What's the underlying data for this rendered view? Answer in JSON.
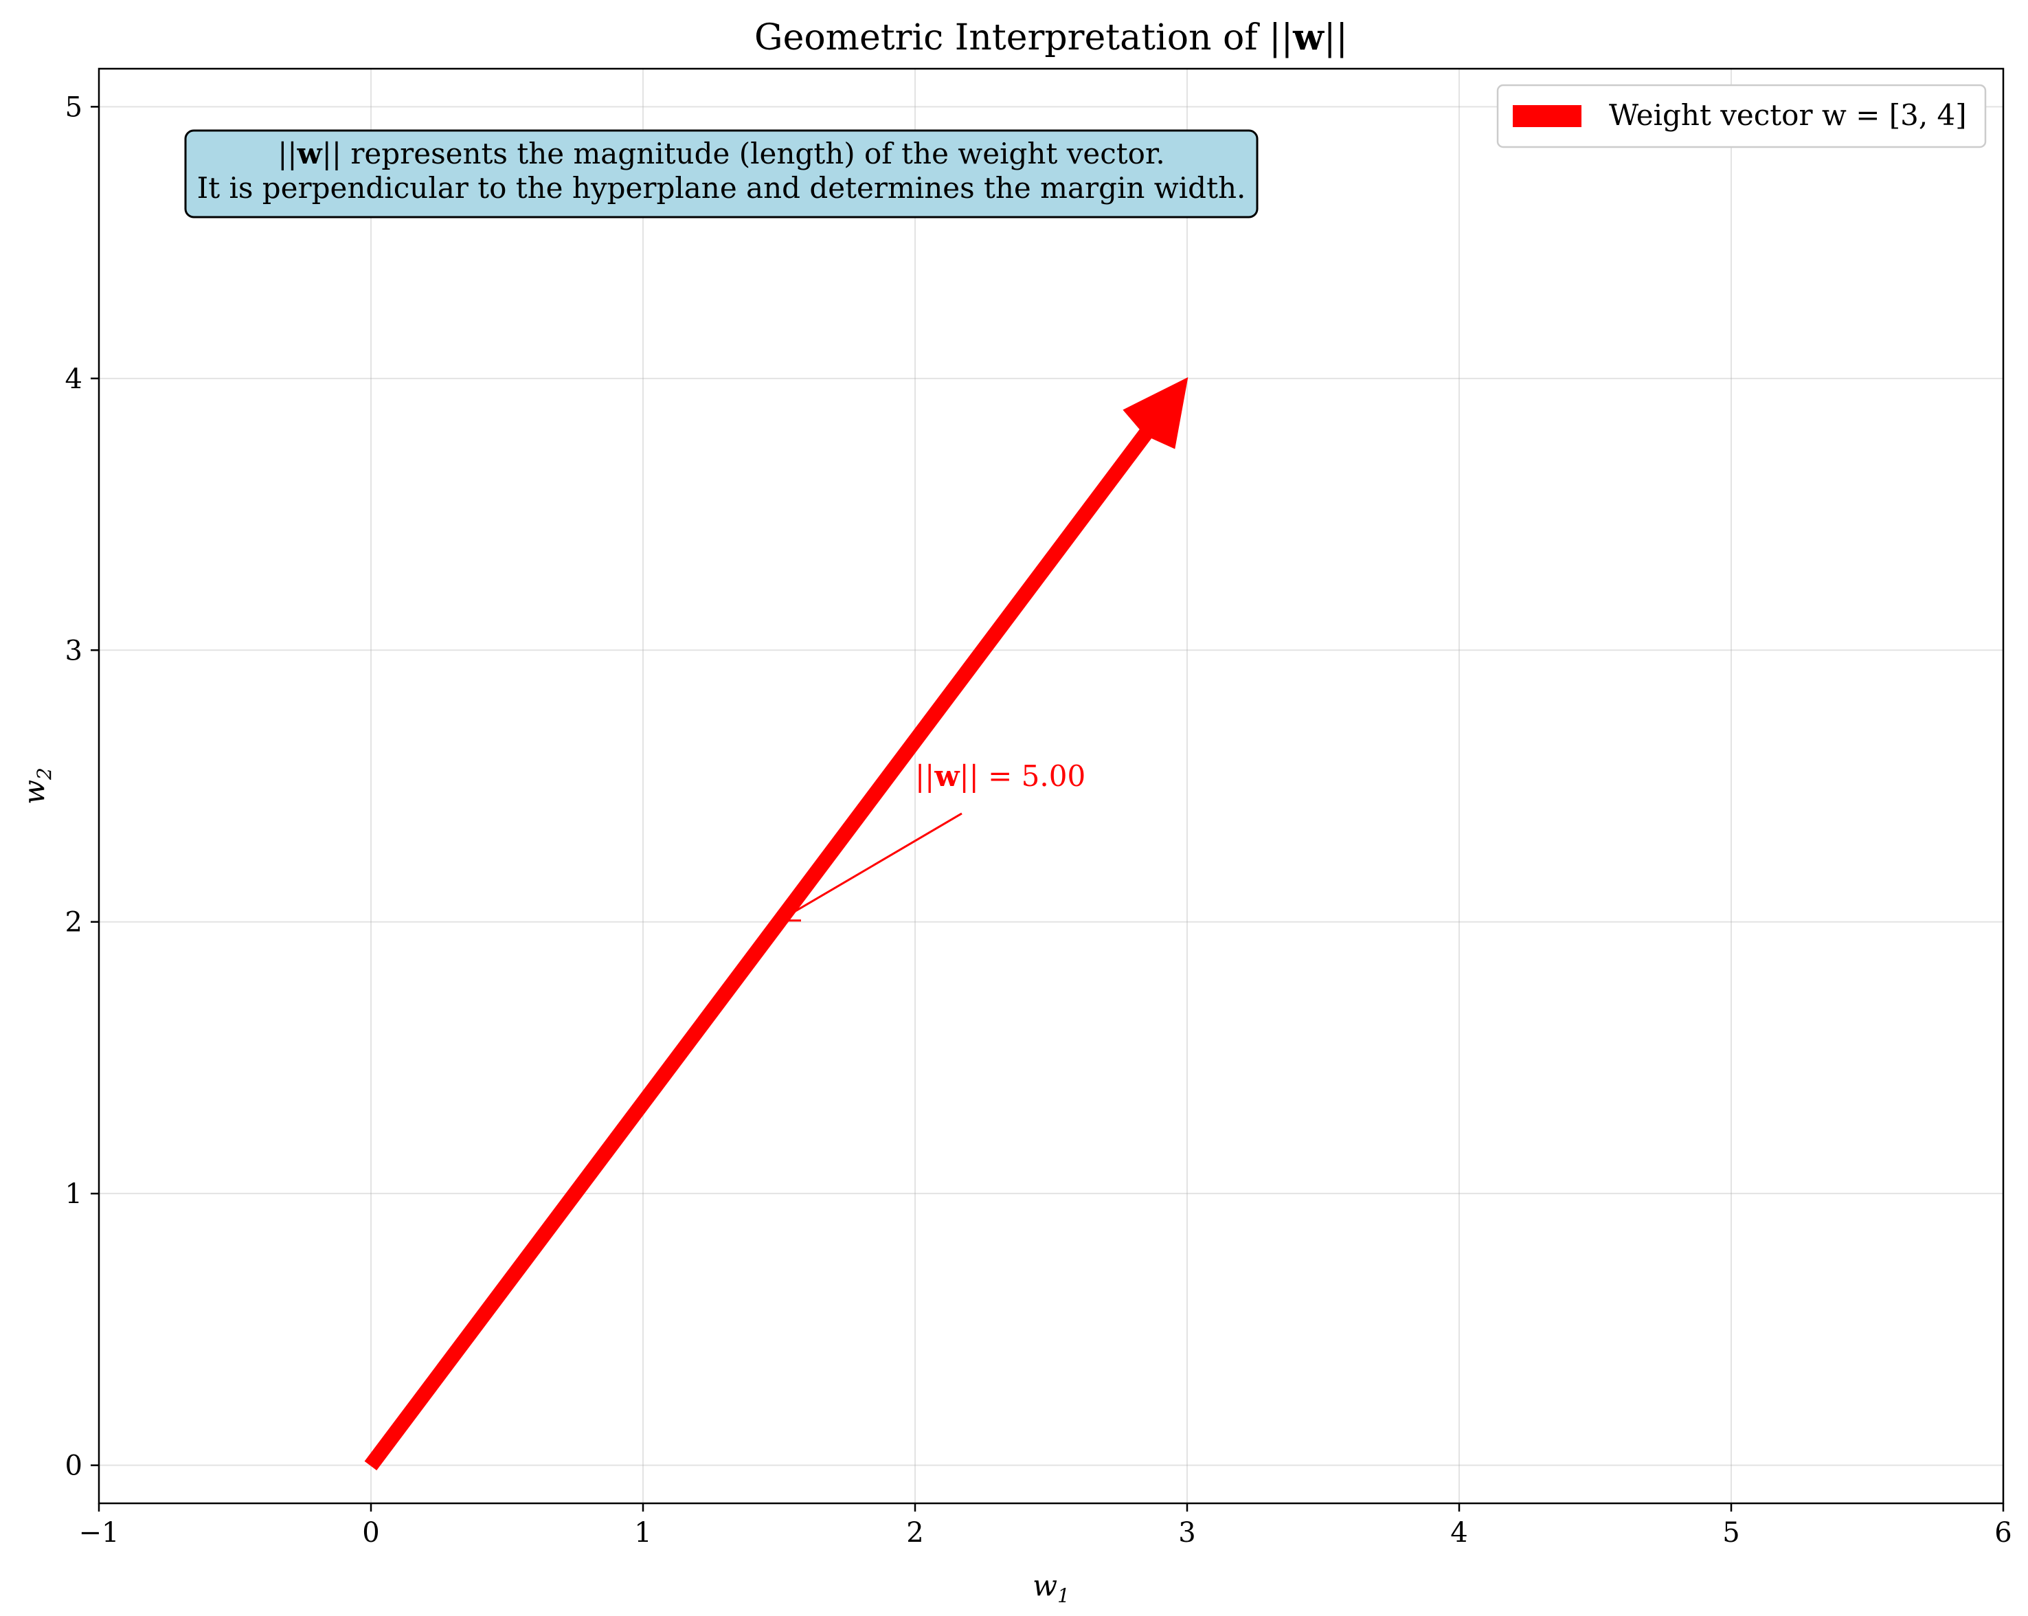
{
  "chart_data": {
    "type": "line",
    "title": "Geometric Interpretation of ||w||",
    "title_parts": {
      "prefix": "Geometric Interpretation of ||",
      "bold": "w",
      "suffix": "||"
    },
    "xlabel": "w1",
    "xlabel_parts": {
      "base": "w",
      "sub": "1"
    },
    "ylabel": "w2",
    "ylabel_parts": {
      "base": "w",
      "sub": "2"
    },
    "xlim": [
      -1,
      6
    ],
    "ylim": [
      -0.14,
      5.14
    ],
    "xticks": [
      -1,
      0,
      1,
      2,
      3,
      4,
      5,
      6
    ],
    "xtick_labels": [
      "−1",
      "0",
      "1",
      "2",
      "3",
      "4",
      "5",
      "6"
    ],
    "yticks": [
      0,
      1,
      2,
      3,
      4,
      5
    ],
    "ytick_labels": [
      "0",
      "1",
      "2",
      "3",
      "4",
      "5"
    ],
    "grid": true,
    "legend_position": "top-right",
    "series": [
      {
        "name": "Weight vector w = [3, 4]",
        "kind": "arrow",
        "color": "#ff0000",
        "x": [
          0,
          3
        ],
        "y": [
          0,
          4
        ]
      }
    ],
    "annotation": {
      "text": "||w|| = 5.00",
      "parts": {
        "prefix": "||",
        "bold": "w",
        "suffix": "|| = 5.00"
      },
      "color": "#ff0000",
      "points_to": [
        1.5,
        2.0
      ],
      "text_at": [
        2.0,
        2.5
      ]
    },
    "note_box": {
      "line1_parts": {
        "prefix": "||",
        "bold": "w",
        "suffix": "|| represents the magnitude (length) of the weight vector."
      },
      "line2": "It is perpendicular to the hyperplane and determines the margin width.",
      "background": "#add8e6"
    }
  }
}
